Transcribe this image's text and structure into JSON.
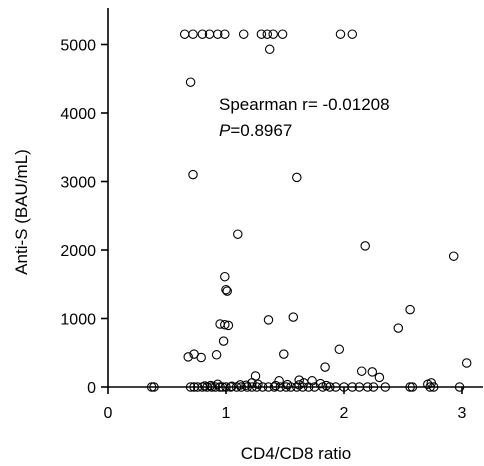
{
  "chart_data": {
    "type": "scatter",
    "xlabel": "CD4/CD8 ratio",
    "ylabel": "Anti-S (BAU/mL)",
    "xlim": [
      0,
      3.2
    ],
    "ylim": [
      0,
      5500
    ],
    "x_ticks": [
      0,
      1,
      2,
      3
    ],
    "y_ticks": [
      0,
      1000,
      2000,
      3000,
      4000,
      5000
    ],
    "annotation": {
      "line1": "Spearman r= -0.01208",
      "line2_italic": "P",
      "line2_rest": "=0.8967"
    },
    "marker": "open-circle",
    "color": "#000000",
    "x": [
      0.65,
      0.72,
      0.8,
      0.86,
      0.93,
      0.99,
      1.15,
      1.3,
      1.35,
      1.4,
      1.48,
      1.97,
      2.07,
      1.37,
      0.7,
      0.72,
      1.1,
      1.6,
      2.18,
      2.93,
      0.99,
      1.0,
      1.01,
      2.56,
      0.95,
      0.99,
      1.02,
      1.57,
      2.46,
      1.36,
      0.98,
      0.92,
      0.79,
      0.73,
      0.68,
      1.49,
      1.96,
      1.84,
      3.04,
      0.37,
      0.39,
      0.7,
      0.73,
      0.76,
      0.8,
      0.84,
      0.88,
      0.91,
      0.95,
      0.97,
      1.0,
      1.04,
      1.09,
      1.13,
      1.18,
      1.22,
      1.26,
      1.31,
      1.36,
      1.41,
      1.46,
      1.51,
      1.55,
      1.6,
      1.65,
      1.7,
      1.75,
      1.82,
      1.88,
      1.93,
      2.0,
      2.07,
      2.13,
      2.2,
      2.25,
      2.35,
      2.56,
      2.58,
      2.73,
      2.76,
      2.98,
      0.82,
      0.87,
      0.93,
      1.05,
      1.12,
      1.17,
      1.22,
      1.27,
      1.42,
      1.52,
      1.62,
      1.66,
      1.73,
      1.8,
      1.85,
      2.15,
      2.24,
      2.3,
      2.71,
      2.74,
      1.25,
      1.45,
      1.62
    ],
    "y": [
      5150,
      5150,
      5150,
      5150,
      5150,
      5150,
      5150,
      5150,
      5150,
      5150,
      5150,
      5150,
      5150,
      4930,
      4450,
      3100,
      2230,
      3060,
      2060,
      1910,
      1610,
      1420,
      1400,
      1130,
      920,
      910,
      900,
      1020,
      860,
      980,
      670,
      470,
      430,
      480,
      440,
      480,
      550,
      290,
      350,
      0,
      0,
      0,
      0,
      0,
      0,
      0,
      0,
      0,
      0,
      0,
      0,
      0,
      0,
      0,
      0,
      0,
      0,
      0,
      0,
      0,
      0,
      0,
      0,
      0,
      0,
      0,
      0,
      0,
      0,
      0,
      0,
      0,
      0,
      0,
      0,
      0,
      0,
      0,
      0,
      0,
      0,
      15,
      20,
      40,
      10,
      30,
      25,
      60,
      40,
      20,
      35,
      30,
      60,
      90,
      50,
      20,
      230,
      220,
      140,
      40,
      60,
      160,
      90,
      100
    ]
  }
}
